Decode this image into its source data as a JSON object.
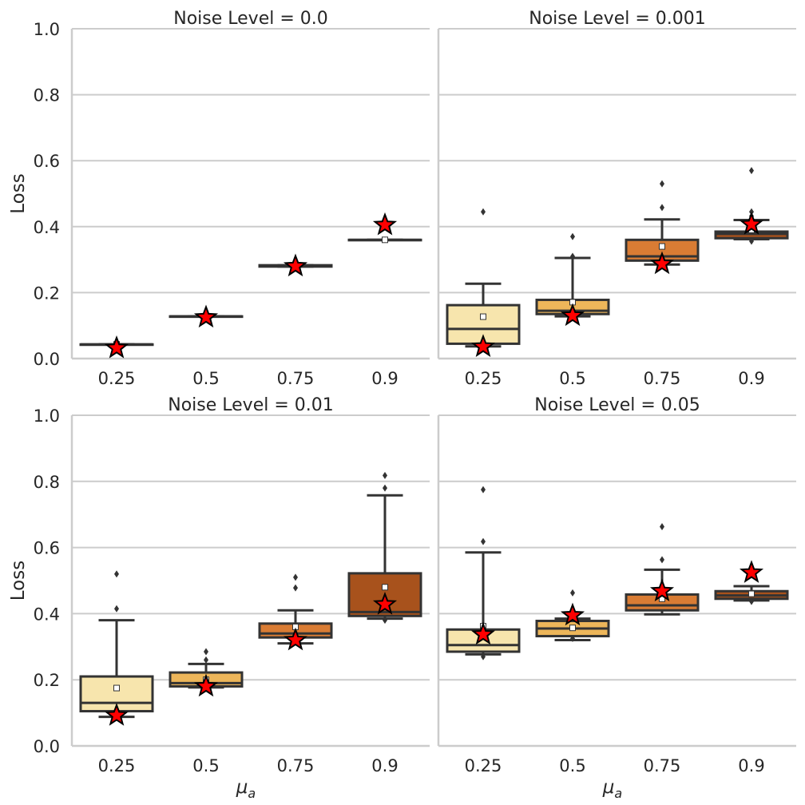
{
  "figure": {
    "ylabel": "Loss",
    "xlabel_base": "μ",
    "xlabel_sub": "a"
  },
  "colors": {
    "boxes": [
      "#f7e5ad",
      "#edb65a",
      "#d97c34",
      "#a8521c"
    ],
    "grid": "#cccccc",
    "axis": "#cccccc",
    "line": "#333333",
    "star_fill": "#ff0000",
    "star_edge": "#000000",
    "mean_fill": "#ffffff"
  },
  "chart_data": [
    {
      "type": "box",
      "title": "Noise Level = 0.0",
      "categories": [
        "0.25",
        "0.5",
        "0.75",
        "0.9"
      ],
      "ylim": [
        0,
        1
      ],
      "yticks": [
        "0.0",
        "0.2",
        "0.4",
        "0.6",
        "0.8",
        "1.0"
      ],
      "boxes": [
        {
          "whislo": 0.043,
          "q1": 0.043,
          "med": 0.043,
          "q3": 0.043,
          "whishi": 0.043,
          "mean": 0.043,
          "fliers": [],
          "star": 0.032
        },
        {
          "whislo": 0.128,
          "q1": 0.128,
          "med": 0.128,
          "q3": 0.128,
          "whishi": 0.128,
          "mean": 0.128,
          "fliers": [],
          "star": 0.125
        },
        {
          "whislo": 0.279,
          "q1": 0.279,
          "med": 0.281,
          "q3": 0.283,
          "whishi": 0.283,
          "mean": 0.281,
          "fliers": [],
          "star": 0.28
        },
        {
          "whislo": 0.36,
          "q1": 0.36,
          "med": 0.36,
          "q3": 0.36,
          "whishi": 0.36,
          "mean": 0.36,
          "fliers": [],
          "star": 0.405
        }
      ]
    },
    {
      "type": "box",
      "title": "Noise Level = 0.001",
      "categories": [
        "0.25",
        "0.5",
        "0.75",
        "0.9"
      ],
      "ylim": [
        0,
        1
      ],
      "yticks": [
        "0.0",
        "0.2",
        "0.4",
        "0.6",
        "0.8",
        "1.0"
      ],
      "boxes": [
        {
          "whislo": 0.037,
          "q1": 0.045,
          "med": 0.09,
          "q3": 0.162,
          "whishi": 0.227,
          "mean": 0.127,
          "fliers": [
            0.445
          ],
          "star": 0.036
        },
        {
          "whislo": 0.128,
          "q1": 0.135,
          "med": 0.145,
          "q3": 0.178,
          "whishi": 0.305,
          "mean": 0.171,
          "fliers": [
            0.37,
            0.31
          ],
          "star": 0.13
        },
        {
          "whislo": 0.285,
          "q1": 0.297,
          "med": 0.31,
          "q3": 0.36,
          "whishi": 0.422,
          "mean": 0.34,
          "fliers": [
            0.53,
            0.458
          ],
          "star": 0.287
        },
        {
          "whislo": 0.362,
          "q1": 0.365,
          "med": 0.378,
          "q3": 0.385,
          "whishi": 0.42,
          "mean": 0.39,
          "fliers": [
            0.57,
            0.445,
            0.432,
            0.356
          ],
          "star": 0.407
        }
      ]
    },
    {
      "type": "box",
      "title": "Noise Level = 0.01",
      "categories": [
        "0.25",
        "0.5",
        "0.75",
        "0.9"
      ],
      "ylim": [
        0,
        1
      ],
      "yticks": [
        "0.0",
        "0.2",
        "0.4",
        "0.6",
        "0.8",
        "1.0"
      ],
      "boxes": [
        {
          "whislo": 0.088,
          "q1": 0.105,
          "med": 0.13,
          "q3": 0.21,
          "whishi": 0.38,
          "mean": 0.175,
          "fliers": [
            0.52,
            0.415
          ],
          "star": 0.092
        },
        {
          "whislo": 0.177,
          "q1": 0.18,
          "med": 0.19,
          "q3": 0.222,
          "whishi": 0.248,
          "mean": 0.2,
          "fliers": [
            0.285,
            0.26
          ],
          "star": 0.18
        },
        {
          "whislo": 0.31,
          "q1": 0.328,
          "med": 0.34,
          "q3": 0.37,
          "whishi": 0.41,
          "mean": 0.36,
          "fliers": [
            0.51,
            0.478
          ],
          "star": 0.32
        },
        {
          "whislo": 0.385,
          "q1": 0.393,
          "med": 0.405,
          "q3": 0.522,
          "whishi": 0.758,
          "mean": 0.48,
          "fliers": [
            0.818,
            0.78,
            0.38
          ],
          "star": 0.428
        }
      ]
    },
    {
      "type": "box",
      "title": "Noise Level = 0.05",
      "categories": [
        "0.25",
        "0.5",
        "0.75",
        "0.9"
      ],
      "ylim": [
        0,
        1
      ],
      "yticks": [
        "0.0",
        "0.2",
        "0.4",
        "0.6",
        "0.8",
        "1.0"
      ],
      "boxes": [
        {
          "whislo": 0.277,
          "q1": 0.285,
          "med": 0.305,
          "q3": 0.352,
          "whishi": 0.585,
          "mean": 0.362,
          "fliers": [
            0.775,
            0.618,
            0.27
          ],
          "star": 0.337
        },
        {
          "whislo": 0.32,
          "q1": 0.332,
          "med": 0.355,
          "q3": 0.378,
          "whishi": 0.385,
          "mean": 0.357,
          "fliers": [
            0.463,
            0.325
          ],
          "star": 0.395
        },
        {
          "whislo": 0.398,
          "q1": 0.41,
          "med": 0.425,
          "q3": 0.458,
          "whishi": 0.533,
          "mean": 0.445,
          "fliers": [
            0.663,
            0.563
          ],
          "star": 0.468
        },
        {
          "whislo": 0.44,
          "q1": 0.445,
          "med": 0.455,
          "q3": 0.468,
          "whishi": 0.483,
          "mean": 0.46,
          "fliers": [
            0.437
          ],
          "star": 0.524
        }
      ]
    }
  ]
}
